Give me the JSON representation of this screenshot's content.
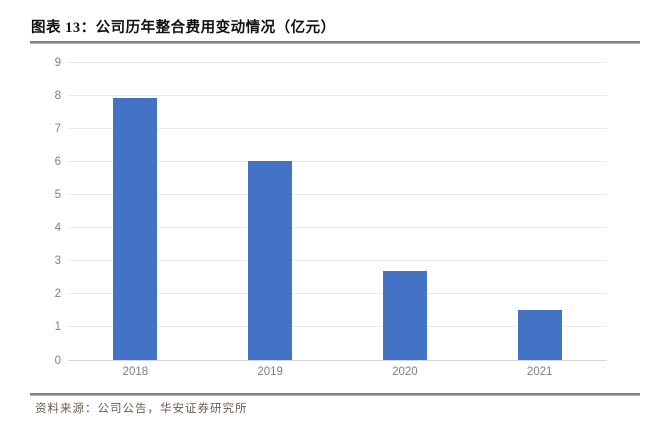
{
  "header": {
    "figure_label": "图表 13：公司历年整合费用变动情况（亿元）"
  },
  "footer": {
    "source": "资料来源：公司公告，华安证券研究所"
  },
  "chart_data": {
    "type": "bar",
    "title": "公司历年整合费用变动情况（亿元）",
    "categories": [
      "2018",
      "2019",
      "2020",
      "2021"
    ],
    "values": [
      7.9,
      6.0,
      2.7,
      1.5
    ],
    "xlabel": "",
    "ylabel": "",
    "ylim": [
      0,
      9
    ],
    "ytick_step": 1,
    "yticks": [
      0,
      1,
      2,
      3,
      4,
      5,
      6,
      7,
      8,
      9
    ],
    "grid": true,
    "legend": "none",
    "bar_color": "#4472C4",
    "gridline_color": "#EAEAEA",
    "baseline_color": "#D6D6D6",
    "axis_label_color": "#7F7F7F"
  }
}
